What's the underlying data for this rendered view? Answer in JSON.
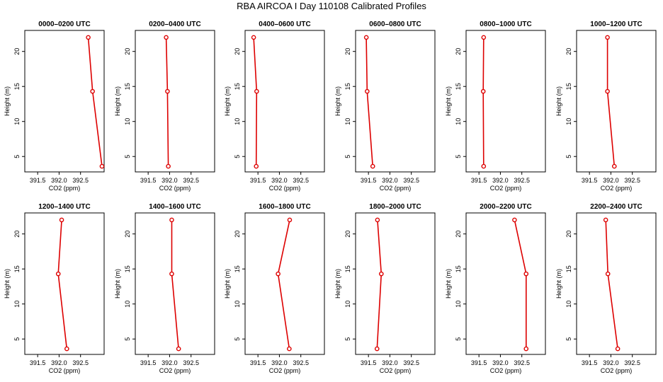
{
  "figure": {
    "title": "RBA AIRCOA I  Day 110108  Calibrated Profiles"
  },
  "colors": {
    "series": "#dd0000",
    "axes": "#000000",
    "background": "#ffffff"
  },
  "chart_data": [
    {
      "type": "line",
      "title": "0000–0200 UTC",
      "xlabel": "CO2 (ppm)",
      "ylabel": "Height (m)",
      "xlim": [
        391.2,
        393.05
      ],
      "ylim": [
        2.8,
        23.0
      ],
      "xticks": [
        "391.5",
        "392.0",
        "392.5"
      ],
      "yticks": [
        "5",
        "10",
        "15",
        "20"
      ],
      "series": [
        {
          "points": [
            {
              "x": 392.68,
              "y": 22.0
            },
            {
              "x": 392.78,
              "y": 14.3
            },
            {
              "x": 393.0,
              "y": 3.6
            }
          ]
        }
      ]
    },
    {
      "type": "line",
      "title": "0200–0400 UTC",
      "xlabel": "CO2 (ppm)",
      "ylabel": "Height (m)",
      "xlim": [
        391.2,
        393.05
      ],
      "ylim": [
        2.8,
        23.0
      ],
      "xticks": [
        "391.5",
        "392.0",
        "392.5"
      ],
      "yticks": [
        "5",
        "10",
        "15",
        "20"
      ],
      "series": [
        {
          "points": [
            {
              "x": 391.92,
              "y": 22.0
            },
            {
              "x": 391.95,
              "y": 14.3
            },
            {
              "x": 391.97,
              "y": 3.6
            }
          ]
        }
      ]
    },
    {
      "type": "line",
      "title": "0400–0600 UTC",
      "xlabel": "CO2 (ppm)",
      "ylabel": "Height (m)",
      "xlim": [
        391.2,
        393.05
      ],
      "ylim": [
        2.8,
        23.0
      ],
      "xticks": [
        "391.5",
        "392.0",
        "392.5"
      ],
      "yticks": [
        "5",
        "10",
        "15",
        "20"
      ],
      "series": [
        {
          "points": [
            {
              "x": 391.4,
              "y": 22.0
            },
            {
              "x": 391.47,
              "y": 14.3
            },
            {
              "x": 391.46,
              "y": 3.6
            }
          ]
        }
      ]
    },
    {
      "type": "line",
      "title": "0600–0800 UTC",
      "xlabel": "CO2 (ppm)",
      "ylabel": "Height (m)",
      "xlim": [
        391.2,
        393.05
      ],
      "ylim": [
        2.8,
        23.0
      ],
      "xticks": [
        "391.5",
        "392.0",
        "392.5"
      ],
      "yticks": [
        "5",
        "10",
        "15",
        "20"
      ],
      "series": [
        {
          "points": [
            {
              "x": 391.45,
              "y": 22.0
            },
            {
              "x": 391.47,
              "y": 14.3
            },
            {
              "x": 391.6,
              "y": 3.6
            }
          ]
        }
      ]
    },
    {
      "type": "line",
      "title": "0800–1000 UTC",
      "xlabel": "CO2 (ppm)",
      "ylabel": "Height (m)",
      "xlim": [
        391.2,
        393.05
      ],
      "ylim": [
        2.8,
        23.0
      ],
      "xticks": [
        "391.5",
        "392.0",
        "392.5"
      ],
      "yticks": [
        "5",
        "10",
        "15",
        "20"
      ],
      "series": [
        {
          "points": [
            {
              "x": 391.61,
              "y": 22.0
            },
            {
              "x": 391.6,
              "y": 14.3
            },
            {
              "x": 391.61,
              "y": 3.6
            }
          ]
        }
      ]
    },
    {
      "type": "line",
      "title": "1000–1200 UTC",
      "xlabel": "CO2 (ppm)",
      "ylabel": "Height (m)",
      "xlim": [
        391.2,
        393.05
      ],
      "ylim": [
        2.8,
        23.0
      ],
      "xticks": [
        "391.5",
        "392.0",
        "392.5"
      ],
      "yticks": [
        "5",
        "10",
        "15",
        "20"
      ],
      "series": [
        {
          "points": [
            {
              "x": 391.92,
              "y": 22.0
            },
            {
              "x": 391.92,
              "y": 14.3
            },
            {
              "x": 392.08,
              "y": 3.6
            }
          ]
        }
      ]
    },
    {
      "type": "line",
      "title": "1200–1400 UTC",
      "xlabel": "CO2 (ppm)",
      "ylabel": "Height (m)",
      "xlim": [
        391.2,
        393.05
      ],
      "ylim": [
        2.8,
        23.0
      ],
      "xticks": [
        "391.5",
        "392.0",
        "392.5"
      ],
      "yticks": [
        "5",
        "10",
        "15",
        "20"
      ],
      "series": [
        {
          "points": [
            {
              "x": 392.06,
              "y": 22.0
            },
            {
              "x": 391.98,
              "y": 14.3
            },
            {
              "x": 392.18,
              "y": 3.6
            }
          ]
        }
      ]
    },
    {
      "type": "line",
      "title": "1400–1600 UTC",
      "xlabel": "CO2 (ppm)",
      "ylabel": "Height (m)",
      "xlim": [
        391.2,
        393.05
      ],
      "ylim": [
        2.8,
        23.0
      ],
      "xticks": [
        "391.5",
        "392.0",
        "392.5"
      ],
      "yticks": [
        "5",
        "10",
        "15",
        "20"
      ],
      "series": [
        {
          "points": [
            {
              "x": 392.05,
              "y": 22.0
            },
            {
              "x": 392.05,
              "y": 14.3
            },
            {
              "x": 392.21,
              "y": 3.6
            }
          ]
        }
      ]
    },
    {
      "type": "line",
      "title": "1600–1800 UTC",
      "xlabel": "CO2 (ppm)",
      "ylabel": "Height (m)",
      "xlim": [
        391.2,
        393.05
      ],
      "ylim": [
        2.8,
        23.0
      ],
      "xticks": [
        "391.5",
        "392.0",
        "392.5"
      ],
      "yticks": [
        "5",
        "10",
        "15",
        "20"
      ],
      "series": [
        {
          "points": [
            {
              "x": 392.24,
              "y": 22.0
            },
            {
              "x": 391.97,
              "y": 14.3
            },
            {
              "x": 392.23,
              "y": 3.6
            }
          ]
        }
      ]
    },
    {
      "type": "line",
      "title": "1800–2000 UTC",
      "xlabel": "CO2 (ppm)",
      "ylabel": "Height (m)",
      "xlim": [
        391.2,
        393.05
      ],
      "ylim": [
        2.8,
        23.0
      ],
      "xticks": [
        "391.5",
        "392.0",
        "392.5"
      ],
      "yticks": [
        "5",
        "10",
        "15",
        "20"
      ],
      "series": [
        {
          "points": [
            {
              "x": 391.71,
              "y": 22.0
            },
            {
              "x": 391.8,
              "y": 14.3
            },
            {
              "x": 391.7,
              "y": 3.6
            }
          ]
        }
      ]
    },
    {
      "type": "line",
      "title": "2000–2200 UTC",
      "xlabel": "CO2 (ppm)",
      "ylabel": "Height (m)",
      "xlim": [
        391.2,
        393.05
      ],
      "ylim": [
        2.8,
        23.0
      ],
      "xticks": [
        "391.5",
        "392.0",
        "392.5"
      ],
      "yticks": [
        "5",
        "10",
        "15",
        "20"
      ],
      "series": [
        {
          "points": [
            {
              "x": 392.33,
              "y": 22.0
            },
            {
              "x": 392.6,
              "y": 14.3
            },
            {
              "x": 392.6,
              "y": 3.6
            }
          ]
        }
      ]
    },
    {
      "type": "line",
      "title": "2200–2400 UTC",
      "xlabel": "CO2 (ppm)",
      "ylabel": "Height (m)",
      "xlim": [
        391.2,
        393.05
      ],
      "ylim": [
        2.8,
        23.0
      ],
      "xticks": [
        "391.5",
        "392.0",
        "392.5"
      ],
      "yticks": [
        "5",
        "10",
        "15",
        "20"
      ],
      "series": [
        {
          "points": [
            {
              "x": 391.88,
              "y": 22.0
            },
            {
              "x": 391.93,
              "y": 14.3
            },
            {
              "x": 392.16,
              "y": 3.6
            }
          ]
        }
      ]
    }
  ]
}
